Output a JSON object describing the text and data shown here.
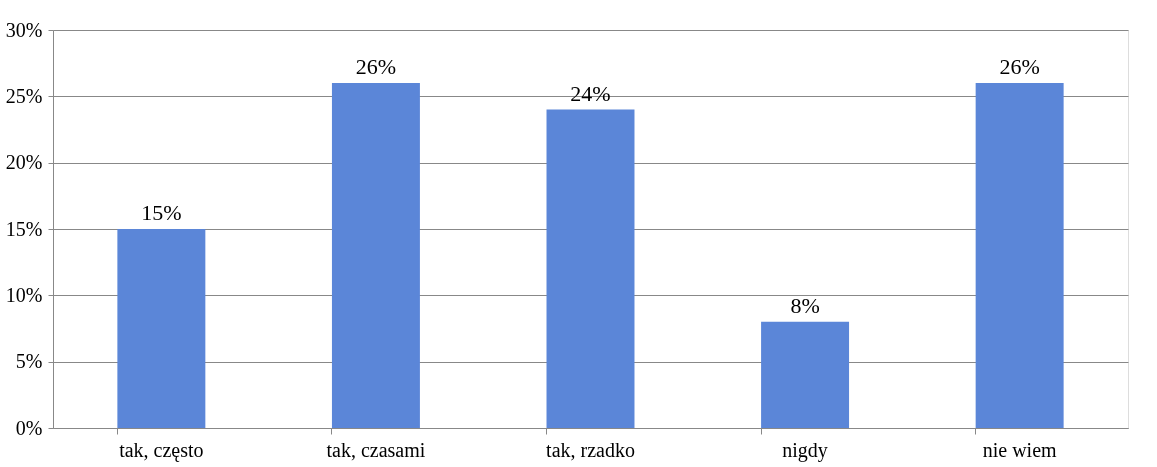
{
  "chart_data": {
    "type": "bar",
    "categories": [
      "tak, często",
      "tak, czasami",
      "tak, rzadko",
      "nigdy",
      "nie wiem"
    ],
    "values": [
      15,
      26,
      24,
      8,
      26
    ],
    "value_labels": [
      "15%",
      "26%",
      "24%",
      "8%",
      "26%"
    ],
    "color": "#5b86d8",
    "ylim": [
      0,
      30
    ],
    "yticks": [
      {
        "value": 0,
        "label": "0%"
      },
      {
        "value": 5,
        "label": "5%"
      },
      {
        "value": 10,
        "label": "10%"
      },
      {
        "value": 15,
        "label": "15%"
      },
      {
        "value": 20,
        "label": "20%"
      },
      {
        "value": 25,
        "label": "25%"
      },
      {
        "value": 30,
        "label": "30%"
      }
    ],
    "grid": "y"
  }
}
